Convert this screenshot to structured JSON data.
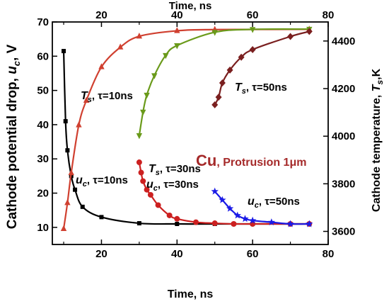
{
  "chart_data": {
    "type": "line",
    "x_axis": {
      "label": "Time, ns",
      "ticks": [
        20,
        40,
        60,
        80
      ],
      "range": [
        7,
        80
      ]
    },
    "x_axis_top": {
      "label": "Time, ns",
      "ticks": [
        20,
        40,
        60,
        80
      ],
      "range": [
        7,
        80
      ]
    },
    "y_axis_left": {
      "label_main": "Cathode potential drop, ",
      "label_var": "u",
      "label_sub": "c",
      "label_unit": ", V",
      "ticks": [
        10,
        20,
        30,
        40,
        50,
        60,
        70
      ],
      "range": [
        5,
        70
      ]
    },
    "y_axis_right": {
      "label_main": "Cathode temperature, ",
      "label_var": "T",
      "label_sub": "s",
      "label_unit": ",K",
      "ticks": [
        3600,
        3800,
        4000,
        4200,
        4400
      ],
      "range": [
        3545,
        4480
      ]
    },
    "annotations": [
      {
        "var": "T",
        "sub": "s",
        "text": ", τ=10ns"
      },
      {
        "var": "T",
        "sub": "s",
        "text": ", τ=30ns"
      },
      {
        "var": "T",
        "sub": "s",
        "text": ", τ=50ns"
      },
      {
        "var": "u",
        "sub": "c",
        "text": ", τ=10ns"
      },
      {
        "var": "u",
        "sub": "c",
        "text": ", τ=30ns"
      },
      {
        "var": "u",
        "sub": "c",
        "text": ", τ=50ns"
      },
      {
        "main": "Cu",
        "rest": ", Protrusion 1",
        "unit": "μm"
      }
    ],
    "series": [
      {
        "axis": "left",
        "color": "#000000",
        "marker": "square",
        "points": [
          [
            10,
            61.5
          ],
          [
            10.5,
            41
          ],
          [
            11,
            32.5
          ],
          [
            12,
            25
          ],
          [
            13,
            21
          ],
          [
            15,
            16
          ],
          [
            20,
            13
          ],
          [
            30,
            11.2
          ],
          [
            40,
            11
          ],
          [
            50,
            11
          ],
          [
            55,
            11
          ],
          [
            60,
            11
          ],
          [
            70,
            11
          ],
          [
            75,
            11
          ]
        ]
      },
      {
        "axis": "left",
        "color": "#cc2020",
        "marker": "circle",
        "points": [
          [
            30,
            29
          ],
          [
            30.5,
            26
          ],
          [
            31,
            23.5
          ],
          [
            32,
            21
          ],
          [
            33,
            19.5
          ],
          [
            35,
            16.5
          ],
          [
            38,
            13.5
          ],
          [
            40,
            12.5
          ],
          [
            45,
            11.5
          ],
          [
            50,
            11.2
          ],
          [
            55,
            11
          ],
          [
            60,
            11
          ],
          [
            70,
            11
          ],
          [
            75,
            11
          ]
        ]
      },
      {
        "axis": "left",
        "color": "#1a1ae6",
        "marker": "star",
        "points": [
          [
            50,
            20.5
          ],
          [
            52,
            18
          ],
          [
            54,
            15.5
          ],
          [
            56,
            13.5
          ],
          [
            58,
            12.5
          ],
          [
            60,
            12
          ],
          [
            65,
            11.5
          ],
          [
            70,
            11
          ],
          [
            75,
            11
          ]
        ]
      },
      {
        "axis": "right",
        "color": "#d04030",
        "marker": "triangle-up",
        "points": [
          [
            10,
            3611
          ],
          [
            11,
            3720
          ],
          [
            12,
            3846
          ],
          [
            14,
            4047
          ],
          [
            16,
            4150
          ],
          [
            20,
            4291
          ],
          [
            25,
            4374
          ],
          [
            30,
            4420
          ],
          [
            40,
            4443
          ],
          [
            50,
            4448
          ],
          [
            75,
            4449
          ]
        ]
      },
      {
        "axis": "right",
        "color": "#6a9a1a",
        "marker": "triangle-down",
        "points": [
          [
            30,
            4003
          ],
          [
            31,
            4102
          ],
          [
            32,
            4173
          ],
          [
            34,
            4255
          ],
          [
            37,
            4340
          ],
          [
            40,
            4381
          ],
          [
            50,
            4437
          ],
          [
            60,
            4449
          ],
          [
            75,
            4450
          ]
        ]
      },
      {
        "axis": "right",
        "color": "#7a1f1f",
        "marker": "diamond",
        "points": [
          [
            50,
            4132
          ],
          [
            51,
            4164
          ],
          [
            52,
            4224
          ],
          [
            54,
            4278
          ],
          [
            57,
            4332
          ],
          [
            60,
            4364
          ],
          [
            70,
            4419
          ],
          [
            75,
            4440
          ]
        ]
      }
    ]
  }
}
